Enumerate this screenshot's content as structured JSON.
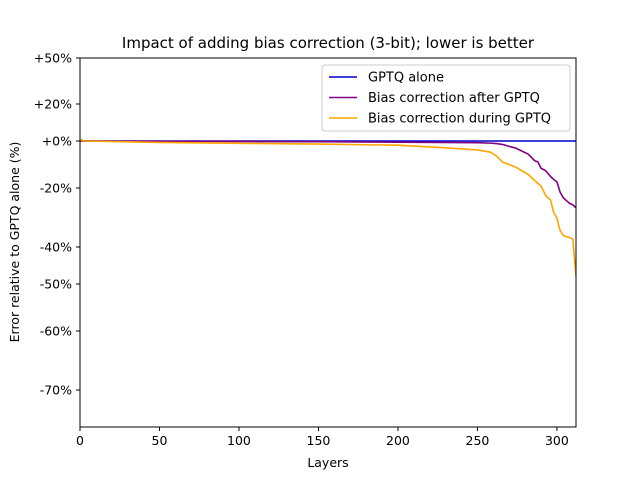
{
  "chart_data": {
    "type": "line",
    "title": "Impact of adding bias correction (3-bit); lower is better",
    "xlabel": "Layers",
    "ylabel": "Error relative to GPTQ alone (%)",
    "xlim": [
      0,
      312
    ],
    "x_ticks": [
      0,
      50,
      100,
      150,
      200,
      250,
      300
    ],
    "y_scale": "symlog-like (non-linear)",
    "y_ticks": [
      {
        "value": 50,
        "label": "+50%"
      },
      {
        "value": 20,
        "label": "+20%"
      },
      {
        "value": 0,
        "label": "+0%"
      },
      {
        "value": -20,
        "label": "-20%"
      },
      {
        "value": -40,
        "label": "-40%"
      },
      {
        "value": -50,
        "label": "-50%"
      },
      {
        "value": -60,
        "label": "-60%"
      },
      {
        "value": -70,
        "label": "-70%"
      }
    ],
    "y_scale_anchors": [
      [
        50,
        58
      ],
      [
        20,
        104
      ],
      [
        0,
        141
      ],
      [
        -20,
        188
      ],
      [
        -40,
        247
      ],
      [
        -50,
        284
      ],
      [
        -60,
        331
      ],
      [
        -70,
        390
      ],
      [
        -80,
        427
      ]
    ],
    "legend_position": "top-right",
    "series": [
      {
        "name": "GPTQ alone",
        "color": "#0000cc",
        "x": [
          0,
          312
        ],
        "y": [
          0,
          0
        ]
      },
      {
        "name": "Bias correction after GPTQ",
        "color": "#800080",
        "x": [
          0,
          50,
          100,
          150,
          200,
          250,
          258,
          262,
          266,
          270,
          274,
          278,
          282,
          286,
          288,
          290,
          293,
          296,
          298,
          300,
          302,
          304,
          306,
          308,
          310,
          312
        ],
        "y": [
          0,
          -0.1,
          -0.2,
          -0.3,
          -0.5,
          -0.7,
          -0.9,
          -1.1,
          -1.5,
          -2.3,
          -3.0,
          -4.3,
          -5.6,
          -8.4,
          -8.9,
          -11.6,
          -12.7,
          -15.1,
          -16.4,
          -17.4,
          -21.4,
          -23.3,
          -24.3,
          -25.2,
          -25.7,
          -26.7
        ]
      },
      {
        "name": "Bias correction during GPTQ",
        "color": "#ffa500",
        "x": [
          0,
          1,
          2,
          50,
          100,
          150,
          200,
          230,
          250,
          258,
          262,
          266,
          270,
          274,
          278,
          282,
          286,
          290,
          293,
          296,
          298,
          300,
          301,
          302,
          304,
          306,
          308,
          310,
          311,
          312
        ],
        "y": [
          0,
          0.8,
          0,
          -0.6,
          -1.0,
          -1.3,
          -1.8,
          -2.9,
          -3.8,
          -4.7,
          -6.4,
          -9.1,
          -10.0,
          -11.1,
          -12.7,
          -14.3,
          -16.8,
          -19.2,
          -22.6,
          -24.1,
          -28.4,
          -30.1,
          -32.5,
          -34.4,
          -36.1,
          -36.5,
          -36.8,
          -37.3,
          -43.0,
          -47.8
        ]
      }
    ]
  }
}
